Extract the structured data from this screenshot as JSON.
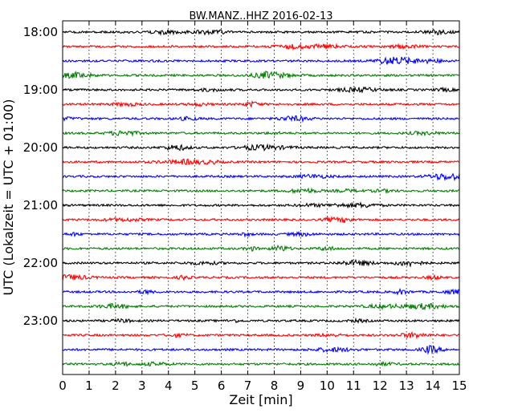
{
  "chart_data": {
    "type": "line",
    "title": "BW.MANZ..HHZ 2016-02-13",
    "xlabel": "Zeit  [min]",
    "ylabel": "UTC (Lokalzeit = UTC + 01:00)",
    "xlim": [
      0,
      15
    ],
    "x_ticks": [
      "0",
      "1",
      "2",
      "3",
      "4",
      "5",
      "6",
      "7",
      "8",
      "9",
      "10",
      "11",
      "12",
      "13",
      "14",
      "15"
    ],
    "y_tick_labels": [
      "18:00",
      "19:00",
      "20:00",
      "21:00",
      "22:00",
      "23:00"
    ],
    "trace_interval_minutes": 15,
    "trace_count": 24,
    "trace_colors": [
      "#000000",
      "#ff0000",
      "#0000ff",
      "#007f00"
    ],
    "grid_x": "dotted",
    "series_start_utc": "18:00",
    "series_end_utc": "23:45"
  }
}
